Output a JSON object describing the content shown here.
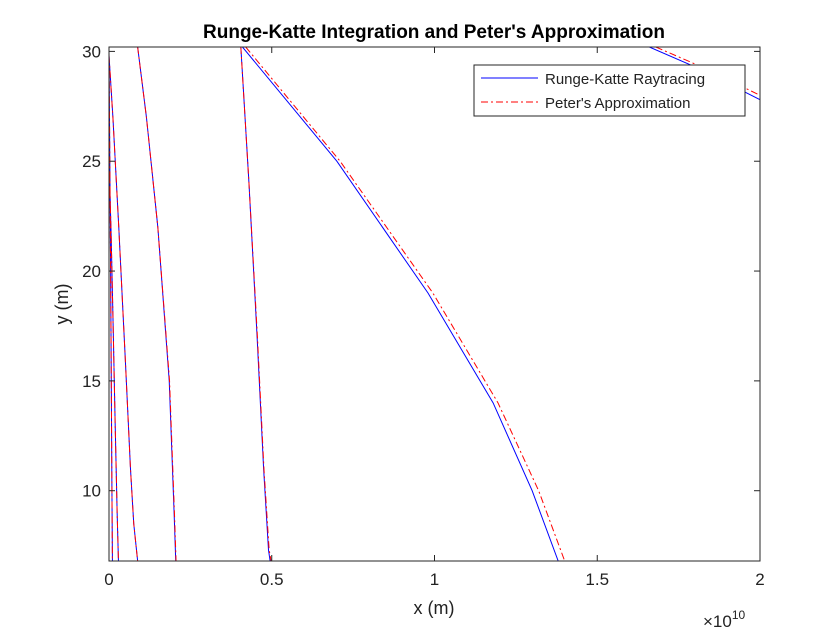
{
  "chart_data": {
    "type": "line",
    "title": "Runge-Katte Integration and Peter's Approximation",
    "xlabel": "x (m)",
    "ylabel": "y (m)",
    "x_exponent_label": "×10",
    "x_exponent": "10",
    "x_scale": 10000000000.0,
    "xlim": [
      0,
      20000000000.0
    ],
    "ylim": [
      6.8,
      30.2
    ],
    "xticks": [
      0,
      5000000000.0,
      10000000000.0,
      15000000000.0,
      20000000000.0
    ],
    "xtick_labels": [
      "0",
      "0.5",
      "1",
      "1.5",
      "2"
    ],
    "yticks": [
      10,
      15,
      20,
      25,
      30
    ],
    "ytick_labels": [
      "10",
      "15",
      "20",
      "25",
      "30"
    ],
    "grid": false,
    "legend_position": "top-right",
    "legend": [
      {
        "label": "Runge-Katte Raytracing",
        "color": "#0000ff",
        "style": "solid"
      },
      {
        "label": "Peter's Approximation",
        "color": "#ff0000",
        "style": "dashdot"
      }
    ],
    "series": [
      {
        "name": "Runge-Katte Raytracing",
        "color": "#0000ff",
        "style": "solid",
        "rays": [
          [
            [
              0,
              30.0
            ],
            [
              10000000.0,
              28
            ],
            [
              25000000.0,
              25
            ],
            [
              50000000.0,
              20
            ],
            [
              70000000.0,
              15
            ],
            [
              90000000.0,
              10
            ],
            [
              105000000.0,
              6.8
            ]
          ],
          [
            [
              0,
              25.0
            ],
            [
              60000000.0,
              22
            ],
            [
              120000000.0,
              18
            ],
            [
              190000000.0,
              13
            ],
            [
              250000000.0,
              9
            ],
            [
              290000000.0,
              6.8
            ]
          ],
          [
            [
              0,
              29.8
            ],
            [
              120000000.0,
              27
            ],
            [
              300000000.0,
              22
            ],
            [
              500000000.0,
              16
            ],
            [
              660000000.0,
              11
            ],
            [
              760000000.0,
              8.5
            ],
            [
              880000000.0,
              6.8
            ]
          ],
          [
            [
              880000000.0,
              30.2
            ],
            [
              1150000000.0,
              27
            ],
            [
              1500000000.0,
              22
            ],
            [
              1850000000.0,
              15
            ],
            [
              2000000000.0,
              9
            ],
            [
              2050000000.0,
              6.8
            ]
          ],
          [
            [
              4050000000.0,
              30.2
            ],
            [
              4300000000.0,
              24
            ],
            [
              4550000000.0,
              17
            ],
            [
              4750000000.0,
              11
            ],
            [
              4900000000.0,
              7.3
            ],
            [
              4950000000.0,
              6.8
            ]
          ],
          [
            [
              4100000000.0,
              30.2
            ],
            [
              7000000000.0,
              25
            ],
            [
              9800000000.0,
              19
            ],
            [
              11800000000.0,
              14
            ],
            [
              13000000000.0,
              10
            ],
            [
              13800000000.0,
              6.8
            ]
          ],
          [
            [
              16600000000.0,
              30.2
            ],
            [
              18000000000.0,
              29.3
            ],
            [
              20000000000.0,
              27.8
            ]
          ]
        ]
      },
      {
        "name": "Peter's Approximation",
        "color": "#ff0000",
        "style": "dashdot",
        "rays": [
          [
            [
              0,
              30.0
            ],
            [
              10000000.0,
              28
            ],
            [
              25000000.0,
              25
            ],
            [
              50000000.0,
              20
            ],
            [
              70000000.0,
              15
            ],
            [
              90000000.0,
              10
            ],
            [
              105000000.0,
              6.8
            ]
          ],
          [
            [
              0,
              25.0
            ],
            [
              60000000.0,
              22
            ],
            [
              120000000.0,
              18
            ],
            [
              190000000.0,
              13
            ],
            [
              250000000.0,
              9
            ],
            [
              290000000.0,
              6.8
            ]
          ],
          [
            [
              0,
              29.8
            ],
            [
              120000000.0,
              27
            ],
            [
              300000000.0,
              22
            ],
            [
              500000000.0,
              16
            ],
            [
              660000000.0,
              11
            ],
            [
              760000000.0,
              8.5
            ],
            [
              880000000.0,
              6.8
            ]
          ],
          [
            [
              880000000.0,
              30.2
            ],
            [
              1150000000.0,
              27
            ],
            [
              1500000000.0,
              22
            ],
            [
              1860000000.0,
              15
            ],
            [
              2010000000.0,
              9
            ],
            [
              2060000000.0,
              6.8
            ]
          ],
          [
            [
              4050000000.0,
              30.2
            ],
            [
              4300000000.0,
              24
            ],
            [
              4560000000.0,
              17
            ],
            [
              4760000000.0,
              11
            ],
            [
              4920000000.0,
              7.3
            ],
            [
              4980000000.0,
              6.8
            ]
          ],
          [
            [
              4200000000.0,
              30.2
            ],
            [
              7100000000.0,
              25
            ],
            [
              9950000000.0,
              19
            ],
            [
              11950000000.0,
              14
            ],
            [
              13200000000.0,
              10
            ],
            [
              14000000000.0,
              6.8
            ]
          ],
          [
            [
              16800000000.0,
              30.2
            ],
            [
              18200000000.0,
              29.3
            ],
            [
              20000000000.0,
              28.0
            ]
          ]
        ]
      }
    ]
  }
}
